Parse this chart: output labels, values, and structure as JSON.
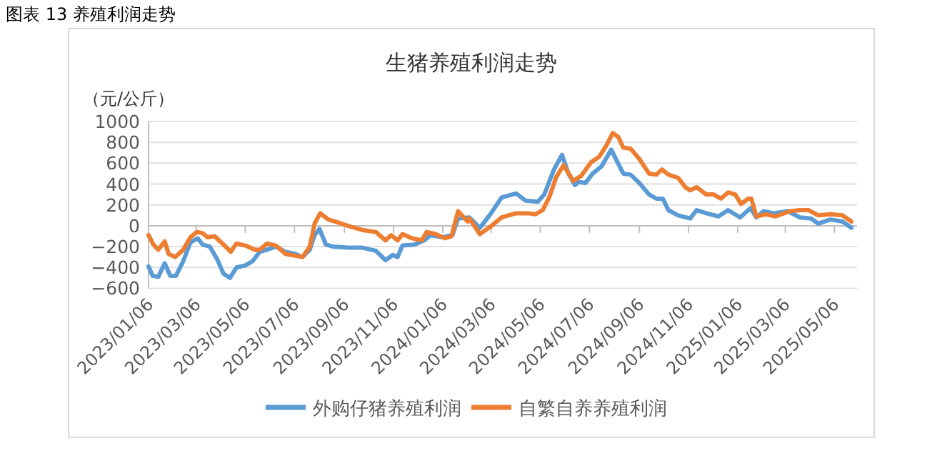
{
  "chart_data": {
    "type": "line",
    "title": "生猪养殖利润走势",
    "ylabel": "（元/公斤）",
    "annotations": [
      "图表 13 养殖利润走势"
    ],
    "xlim": [
      "2023-01-06",
      "2025-06-03"
    ],
    "xticks": [
      {
        "value": "2023-01-06",
        "label": "2023/01/06"
      },
      {
        "value": "2023-03-06",
        "label": "2023/03/06"
      },
      {
        "value": "2023-05-06",
        "label": "2023/05/06"
      },
      {
        "value": "2023-07-06",
        "label": "2023/07/06"
      },
      {
        "value": "2023-09-06",
        "label": "2023/09/06"
      },
      {
        "value": "2023-11-06",
        "label": "2023/11/06"
      },
      {
        "value": "2024-01-06",
        "label": "2024/01/06"
      },
      {
        "value": "2024-03-06",
        "label": "2024/03/06"
      },
      {
        "value": "2024-05-06",
        "label": "2024/05/06"
      },
      {
        "value": "2024-07-06",
        "label": "2024/07/06"
      },
      {
        "value": "2024-09-06",
        "label": "2024/09/06"
      },
      {
        "value": "2024-11-06",
        "label": "2024/11/06"
      },
      {
        "value": "2025-01-06",
        "label": "2025/01/06"
      },
      {
        "value": "2025-03-06",
        "label": "2025/03/06"
      },
      {
        "value": "2025-05-06",
        "label": "2025/05/06"
      }
    ],
    "ylim": [
      -600,
      1000
    ],
    "yticks": [
      -600,
      -400,
      -200,
      0,
      200,
      400,
      600,
      800,
      1000
    ],
    "grid": "y",
    "legend": "bottom",
    "marker": "none",
    "line_style": "solid",
    "series": [
      {
        "name": "外购仔猪养殖利润",
        "color": "#5b9bd5",
        "x": [
          "2023-01-06",
          "2023-01-11",
          "2023-01-18",
          "2023-01-26",
          "2023-02-02",
          "2023-02-09",
          "2023-02-18",
          "2023-02-27",
          "2023-03-08",
          "2023-03-14",
          "2023-03-23",
          "2023-04-01",
          "2023-04-09",
          "2023-04-17",
          "2023-04-25",
          "2023-05-06",
          "2023-05-15",
          "2023-05-24",
          "2023-06-02",
          "2023-06-13",
          "2023-06-25",
          "2023-07-07",
          "2023-07-16",
          "2023-07-25",
          "2023-07-31",
          "2023-08-06",
          "2023-08-14",
          "2023-08-23",
          "2023-09-10",
          "2023-09-28",
          "2023-10-15",
          "2023-10-27",
          "2023-11-05",
          "2023-11-11",
          "2023-11-17",
          "2023-12-02",
          "2023-12-14",
          "2023-12-22",
          "2024-01-06",
          "2024-01-18",
          "2024-01-25",
          "2024-02-08",
          "2024-02-21",
          "2024-03-05",
          "2024-03-19",
          "2024-04-06",
          "2024-04-18",
          "2024-05-03",
          "2024-05-11",
          "2024-05-23",
          "2024-06-02",
          "2024-06-10",
          "2024-06-18",
          "2024-06-23",
          "2024-07-01",
          "2024-07-10",
          "2024-07-21",
          "2024-08-02",
          "2024-08-17",
          "2024-08-26",
          "2024-09-06",
          "2024-09-18",
          "2024-09-27",
          "2024-10-05",
          "2024-10-12",
          "2024-10-24",
          "2024-11-08",
          "2024-11-16",
          "2024-11-28",
          "2024-12-13",
          "2024-12-25",
          "2025-01-09",
          "2025-01-22",
          "2025-01-29",
          "2025-02-07",
          "2025-02-19",
          "2025-03-09",
          "2025-03-24",
          "2025-04-07",
          "2025-04-16",
          "2025-05-01",
          "2025-05-16",
          "2025-05-27"
        ],
        "values": [
          -390,
          -480,
          -490,
          -360,
          -480,
          -480,
          -340,
          -160,
          -120,
          -180,
          -200,
          -320,
          -460,
          -500,
          -400,
          -380,
          -340,
          -250,
          -230,
          -200,
          -250,
          -270,
          -300,
          -230,
          -90,
          -30,
          -180,
          -200,
          -210,
          -210,
          -240,
          -330,
          -280,
          -300,
          -190,
          -180,
          -140,
          -90,
          -110,
          -90,
          70,
          80,
          -20,
          110,
          270,
          310,
          240,
          230,
          300,
          540,
          680,
          500,
          390,
          420,
          410,
          500,
          570,
          730,
          500,
          490,
          410,
          300,
          260,
          260,
          150,
          100,
          70,
          150,
          120,
          90,
          150,
          80,
          170,
          80,
          140,
          120,
          140,
          80,
          70,
          20,
          60,
          40,
          -20
        ]
      },
      {
        "name": "自繁自养养殖利润",
        "color": "#ed7d31",
        "x": [
          "2023-01-06",
          "2023-01-12",
          "2023-01-18",
          "2023-01-26",
          "2023-01-31",
          "2023-02-08",
          "2023-02-18",
          "2023-02-27",
          "2023-03-07",
          "2023-03-14",
          "2023-03-20",
          "2023-03-29",
          "2023-04-09",
          "2023-04-18",
          "2023-04-25",
          "2023-05-06",
          "2023-05-18",
          "2023-05-24",
          "2023-06-02",
          "2023-06-13",
          "2023-06-25",
          "2023-07-16",
          "2023-07-25",
          "2023-07-31",
          "2023-08-07",
          "2023-08-17",
          "2023-08-26",
          "2023-09-10",
          "2023-09-28",
          "2023-10-15",
          "2023-10-27",
          "2023-11-03",
          "2023-11-11",
          "2023-11-17",
          "2023-11-29",
          "2023-12-11",
          "2023-12-17",
          "2023-12-28",
          "2024-01-09",
          "2024-01-17",
          "2024-01-25",
          "2024-02-06",
          "2024-02-08",
          "2024-02-21",
          "2024-03-05",
          "2024-03-19",
          "2024-04-06",
          "2024-04-21",
          "2024-04-30",
          "2024-05-09",
          "2024-05-17",
          "2024-05-26",
          "2024-06-04",
          "2024-06-16",
          "2024-06-26",
          "2024-07-08",
          "2024-07-18",
          "2024-07-27",
          "2024-08-04",
          "2024-08-11",
          "2024-08-17",
          "2024-08-26",
          "2024-09-06",
          "2024-09-18",
          "2024-09-27",
          "2024-10-04",
          "2024-10-12",
          "2024-10-24",
          "2024-11-02",
          "2024-11-08",
          "2024-11-16",
          "2024-11-28",
          "2024-12-07",
          "2024-12-16",
          "2024-12-25",
          "2025-01-03",
          "2025-01-10",
          "2025-01-19",
          "2025-01-23",
          "2025-01-29",
          "2025-02-10",
          "2025-02-22",
          "2025-03-12",
          "2025-03-24",
          "2025-04-04",
          "2025-04-16",
          "2025-05-01",
          "2025-05-16",
          "2025-05-27"
        ],
        "values": [
          -90,
          -180,
          -230,
          -150,
          -270,
          -300,
          -230,
          -110,
          -60,
          -70,
          -110,
          -100,
          -180,
          -250,
          -170,
          -190,
          -230,
          -230,
          -170,
          -190,
          -270,
          -300,
          -200,
          20,
          120,
          60,
          40,
          0,
          -40,
          -60,
          -140,
          -90,
          -140,
          -80,
          -120,
          -140,
          -60,
          -80,
          -120,
          -100,
          140,
          40,
          70,
          -80,
          -10,
          80,
          120,
          120,
          110,
          150,
          270,
          470,
          580,
          430,
          480,
          610,
          660,
          770,
          890,
          850,
          750,
          740,
          640,
          500,
          490,
          540,
          490,
          460,
          370,
          340,
          370,
          300,
          300,
          260,
          320,
          300,
          210,
          260,
          260,
          90,
          110,
          90,
          140,
          150,
          150,
          100,
          110,
          100,
          40
        ]
      }
    ]
  }
}
